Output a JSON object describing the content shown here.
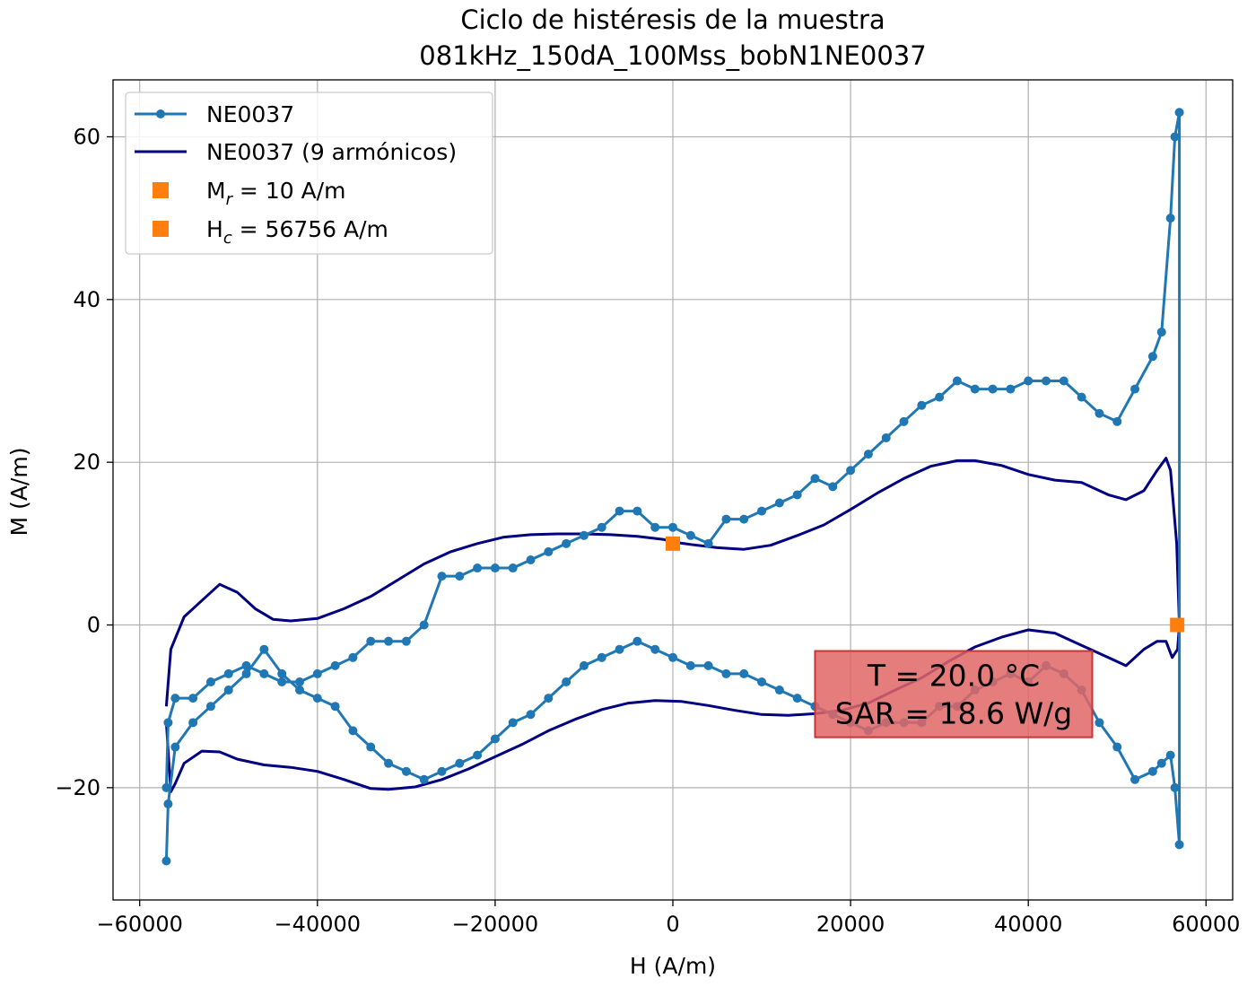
{
  "chart_data": {
    "type": "line",
    "title_lines": [
      "Ciclo de histéresis de la muestra",
      "081kHz_150dA_100Mss_bobN1NE0037"
    ],
    "xlabel": "H (A/m)",
    "ylabel": "M (A/m)",
    "xlim": [
      -63000,
      63000
    ],
    "ylim": [
      -33800,
      67000
    ],
    "y_scale_note": "",
    "x_ticks": [
      -60000,
      -40000,
      -20000,
      0,
      20000,
      40000,
      60000
    ],
    "x_tick_labels": [
      "−60000",
      "−40000",
      "−20000",
      "0",
      "20000",
      "40000",
      "60000"
    ],
    "y_ticks": [
      -20,
      0,
      20,
      40,
      60
    ],
    "y_tick_labels": [
      "−20",
      "0",
      "20",
      "40",
      "60"
    ],
    "grid": true,
    "legend_position": "top-left",
    "colors": {
      "raw": "#1f77b4",
      "fit": "#000080",
      "markers": "#ff7f0e",
      "annotation_fill": "#e06666",
      "annotation_edge": "#cc3333"
    },
    "legend": [
      {
        "label": "NE0037",
        "kind": "line-marker"
      },
      {
        "label": "NE0037 (9 armónicos)",
        "kind": "line"
      },
      {
        "label": "M_r = 10 A/m",
        "main": "M",
        "sub": "r",
        "rest": " = 10 A/m",
        "kind": "square"
      },
      {
        "label": "H_c = 56756 A/m",
        "main": "H",
        "sub": "c",
        "rest": " = 56756 A/m",
        "kind": "square"
      }
    ],
    "annotation": {
      "lines": [
        "T = 20.0 °C",
        "SAR = 18.6 W/g"
      ]
    },
    "series": [
      {
        "name": "NE0037",
        "x": [
          -57000,
          -56800,
          -56000,
          -54000,
          -52000,
          -50000,
          -48000,
          -46000,
          -44000,
          -42000,
          -40000,
          -38000,
          -36000,
          -34000,
          -32000,
          -30000,
          -28000,
          -26000,
          -24000,
          -22000,
          -20000,
          -18000,
          -16000,
          -14000,
          -12000,
          -10000,
          -8000,
          -6000,
          -4000,
          -2000,
          0,
          2000,
          4000,
          6000,
          8000,
          10000,
          12000,
          14000,
          16000,
          18000,
          20000,
          22000,
          24000,
          26000,
          28000,
          30000,
          32000,
          34000,
          36000,
          38000,
          40000,
          42000,
          44000,
          46000,
          48000,
          50000,
          52000,
          54000,
          55000,
          56000,
          56500,
          57000,
          57000,
          56500,
          56000,
          55000,
          54000,
          52000,
          50000,
          48000,
          46000,
          44000,
          42000,
          40000,
          38000,
          36000,
          34000,
          32000,
          30000,
          28000,
          26000,
          24000,
          22000,
          20000,
          18000,
          16000,
          14000,
          12000,
          10000,
          8000,
          6000,
          4000,
          2000,
          0,
          -2000,
          -4000,
          -6000,
          -8000,
          -10000,
          -12000,
          -14000,
          -16000,
          -18000,
          -20000,
          -22000,
          -24000,
          -26000,
          -28000,
          -30000,
          -32000,
          -34000,
          -36000,
          -38000,
          -40000,
          -42000,
          -44000,
          -46000,
          -48000,
          -50000,
          -52000,
          -54000,
          -56000,
          -56800,
          -57000
        ],
        "y": [
          -20,
          -12,
          -9,
          -9,
          -7,
          -6,
          -5,
          -6,
          -7,
          -7,
          -6,
          -5,
          -4,
          -2,
          -2,
          -2,
          0,
          6,
          6,
          7,
          7,
          7,
          8,
          9,
          10,
          11,
          12,
          14,
          14,
          12,
          12,
          11,
          10,
          13,
          13,
          14,
          15,
          16,
          18,
          17,
          19,
          21,
          23,
          25,
          27,
          28,
          30,
          29,
          29,
          29,
          30,
          30,
          30,
          28,
          26,
          25,
          29,
          33,
          36,
          50,
          60,
          63,
          -27,
          -20,
          -16,
          -17,
          -18,
          -19,
          -15,
          -12,
          -8,
          -6,
          -5,
          -7,
          -6,
          -7,
          -8,
          -10,
          -10,
          -12,
          -12,
          -12,
          -13,
          -12,
          -11,
          -10,
          -9,
          -8,
          -7,
          -6,
          -6,
          -5,
          -5,
          -4,
          -3,
          -2,
          -3,
          -4,
          -5,
          -7,
          -9,
          -11,
          -12,
          -14,
          -16,
          -17,
          -18,
          -19,
          -18,
          -17,
          -15,
          -13,
          -10,
          -9,
          -8,
          -6,
          -3,
          -6,
          -8,
          -10,
          -12,
          -15,
          -22,
          -29
        ]
      },
      {
        "name": "NE0037 (9 armónicos)",
        "x": [
          -57000,
          -56500,
          -55000,
          -53000,
          -51000,
          -49000,
          -47000,
          -45000,
          -43000,
          -40000,
          -37000,
          -34000,
          -31000,
          -28000,
          -25000,
          -22000,
          -19000,
          -16000,
          -13000,
          -10000,
          -7000,
          -4000,
          -1000,
          0,
          2000,
          5000,
          8000,
          11000,
          14000,
          17000,
          20000,
          23000,
          26000,
          29000,
          32000,
          34000,
          37000,
          40000,
          43000,
          46000,
          49000,
          51000,
          53000,
          54500,
          55500,
          56000,
          56700,
          57000,
          57000,
          56800,
          56200,
          55500,
          54500,
          53000,
          51000,
          49000,
          47000,
          45000,
          43000,
          40000,
          37000,
          34000,
          31000,
          28000,
          25000,
          22000,
          19000,
          16000,
          13000,
          10000,
          7000,
          4000,
          1000,
          -2000,
          -5000,
          -8000,
          -11000,
          -14000,
          -17000,
          -20000,
          -23000,
          -26000,
          -29000,
          -32000,
          -34000,
          -37000,
          -40000,
          -43000,
          -46000,
          -49000,
          -51000,
          -53000,
          -55000,
          -56000,
          -56500,
          -57000
        ],
        "y": [
          -10,
          -3,
          1,
          3,
          5,
          4,
          2,
          0.7,
          0.5,
          0.8,
          2,
          3.5,
          5.5,
          7.5,
          9,
          10,
          10.8,
          11.1,
          11.2,
          11.2,
          11.1,
          10.9,
          10.5,
          10.2,
          9.9,
          9.5,
          9.3,
          9.8,
          11,
          12.3,
          14.2,
          16.2,
          18,
          19.5,
          20.2,
          20.2,
          19.6,
          18.5,
          17.8,
          17.5,
          16,
          15.4,
          16.5,
          19,
          20.5,
          19,
          10,
          0,
          0,
          -3,
          -4,
          -2,
          -2,
          -3,
          -5,
          -4,
          -3,
          -2,
          -1,
          -0.6,
          -1.5,
          -2.7,
          -4.5,
          -6.5,
          -8,
          -9.6,
          -10.5,
          -10.9,
          -11.1,
          -11,
          -10.5,
          -9.9,
          -9.4,
          -9.3,
          -9.6,
          -10.4,
          -11.6,
          -13,
          -14.7,
          -16.2,
          -17.7,
          -19,
          -19.9,
          -20.2,
          -20.1,
          -19,
          -18,
          -17.5,
          -17.2,
          -16.5,
          -15.6,
          -15.5,
          -17,
          -19.5,
          -20.5,
          -12
        ]
      }
    ]
  }
}
